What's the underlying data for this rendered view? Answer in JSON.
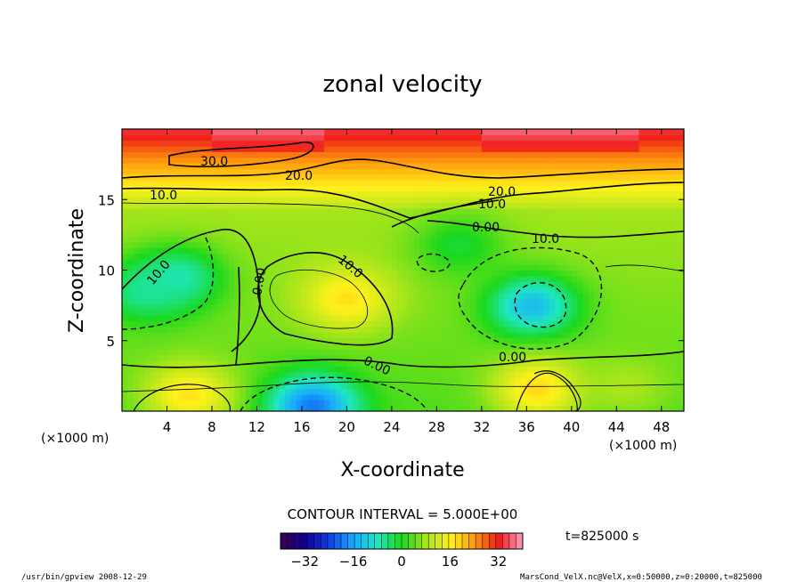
{
  "chart_data": {
    "type": "heatmap",
    "title": "zonal velocity",
    "xlabel": "X-coordinate",
    "ylabel": "Z-coordinate",
    "x_unit": "(×1000 m)",
    "y_unit": "(×1000 m)",
    "xlim": [
      0,
      50
    ],
    "ylim": [
      0,
      20
    ],
    "x_ticks": [
      "4",
      "8",
      "12",
      "16",
      "20",
      "24",
      "28",
      "32",
      "36",
      "40",
      "44",
      "48"
    ],
    "y_ticks": [
      "5",
      "10",
      "15"
    ],
    "contour_interval_text": "CONTOUR INTERVAL = 5.000E+00",
    "time_text": "t=825000 s",
    "colorbar": {
      "min": -40,
      "max": 40,
      "ticks": [
        "−32",
        "−16",
        "0",
        "16",
        "32"
      ],
      "colors": [
        "#3a004f",
        "#10008e",
        "#0f3fe6",
        "#19a9ff",
        "#1ee7c3",
        "#1bd81b",
        "#a6e51b",
        "#fff11b",
        "#ff9a0d",
        "#ee1a1a",
        "#ff9fbd"
      ]
    },
    "contour_labels": [
      "30.0",
      "20.0",
      "10.0",
      "20.0",
      "10.0",
      "0.00",
      "10.0",
      "10.0",
      "0.00",
      "10.0",
      "0.00",
      "0.00"
    ],
    "centers": [
      {
        "x": 20,
        "z": 8.0,
        "value": 17
      },
      {
        "x": 36.5,
        "z": 7.5,
        "value": -14
      },
      {
        "x": 5,
        "z": 9.5,
        "value": -8
      },
      {
        "x": 30,
        "z": 11.8,
        "value": -2
      },
      {
        "x": 17,
        "z": 0.4,
        "value": -20
      },
      {
        "x": 37,
        "z": 1.6,
        "value": 18
      },
      {
        "x": 6,
        "z": 1.2,
        "value": 17
      },
      {
        "x": 45,
        "z": 1.8,
        "value": 8
      },
      {
        "x": 2,
        "z": 8.5,
        "value": -6
      }
    ]
  },
  "footer": {
    "left": "/usr/bin/gpview   2008-12-29",
    "right": "MarsCond_VelX.nc@VelX,x=0:50000,z=0:20000,t=825000"
  }
}
